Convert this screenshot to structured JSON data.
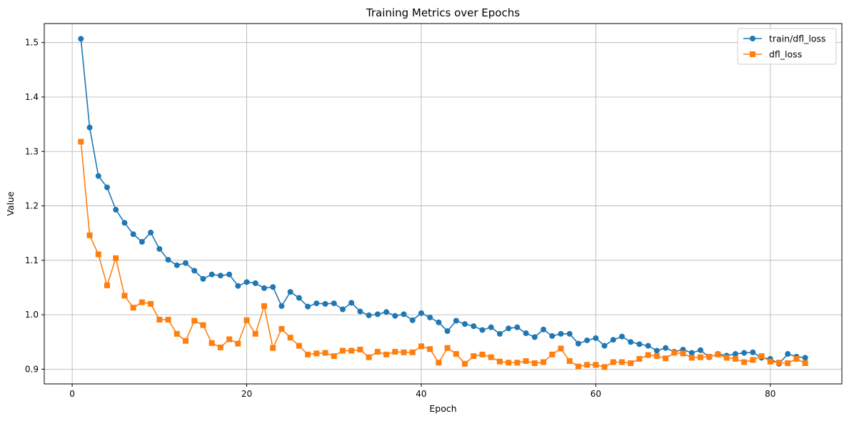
{
  "chart_data": {
    "type": "line",
    "title": "Training Metrics over Epochs",
    "xlabel": "Epoch",
    "ylabel": "Value",
    "xlim": [
      -3.2,
      88.2
    ],
    "ylim": [
      0.873,
      1.535
    ],
    "xticks": [
      0,
      20,
      40,
      60,
      80
    ],
    "yticks": [
      0.9,
      1.0,
      1.1,
      1.2,
      1.3,
      1.4,
      1.5
    ],
    "ytick_labels": [
      "0.9",
      "1.0",
      "1.1",
      "1.2",
      "1.3",
      "1.4",
      "1.5"
    ],
    "grid": true,
    "legend_position": "top-right",
    "x": [
      1,
      2,
      3,
      4,
      5,
      6,
      7,
      8,
      9,
      10,
      11,
      12,
      13,
      14,
      15,
      16,
      17,
      18,
      19,
      20,
      21,
      22,
      23,
      24,
      25,
      26,
      27,
      28,
      29,
      30,
      31,
      32,
      33,
      34,
      35,
      36,
      37,
      38,
      39,
      40,
      41,
      42,
      43,
      44,
      45,
      46,
      47,
      48,
      49,
      50,
      51,
      52,
      53,
      54,
      55,
      56,
      57,
      58,
      59,
      60,
      61,
      62,
      63,
      64,
      65,
      66,
      67,
      68,
      69,
      70,
      71,
      72,
      73,
      74,
      75,
      76,
      77,
      78,
      79,
      80,
      81,
      82,
      83,
      84
    ],
    "series": [
      {
        "name": "train/dfl_loss",
        "color": "#1f77b4",
        "marker": "circle",
        "values": [
          1.507,
          1.344,
          1.255,
          1.234,
          1.193,
          1.169,
          1.148,
          1.134,
          1.151,
          1.121,
          1.101,
          1.091,
          1.095,
          1.081,
          1.066,
          1.074,
          1.072,
          1.074,
          1.053,
          1.06,
          1.058,
          1.049,
          1.051,
          1.016,
          1.042,
          1.031,
          1.015,
          1.021,
          1.02,
          1.021,
          1.01,
          1.022,
          1.006,
          0.999,
          1.001,
          1.005,
          0.998,
          1.001,
          0.99,
          1.003,
          0.995,
          0.986,
          0.97,
          0.989,
          0.983,
          0.979,
          0.972,
          0.977,
          0.965,
          0.975,
          0.977,
          0.966,
          0.959,
          0.973,
          0.961,
          0.965,
          0.965,
          0.947,
          0.953,
          0.957,
          0.943,
          0.954,
          0.96,
          0.95,
          0.946,
          0.943,
          0.934,
          0.939,
          0.932,
          0.936,
          0.93,
          0.935,
          0.922,
          0.928,
          0.925,
          0.928,
          0.93,
          0.931,
          0.921,
          0.919,
          0.91,
          0.928,
          0.923,
          0.921
        ]
      },
      {
        "name": "dfl_loss",
        "color": "#ff7f0e",
        "marker": "square",
        "values": [
          1.318,
          1.146,
          1.111,
          1.054,
          1.104,
          1.035,
          1.013,
          1.023,
          1.02,
          0.991,
          0.991,
          0.965,
          0.952,
          0.989,
          0.981,
          0.948,
          0.94,
          0.955,
          0.947,
          0.99,
          0.965,
          1.016,
          0.939,
          0.974,
          0.958,
          0.943,
          0.927,
          0.929,
          0.93,
          0.924,
          0.934,
          0.934,
          0.936,
          0.922,
          0.932,
          0.927,
          0.932,
          0.931,
          0.931,
          0.942,
          0.937,
          0.912,
          0.939,
          0.928,
          0.91,
          0.924,
          0.927,
          0.922,
          0.914,
          0.912,
          0.912,
          0.915,
          0.911,
          0.913,
          0.927,
          0.938,
          0.915,
          0.905,
          0.908,
          0.908,
          0.904,
          0.913,
          0.913,
          0.911,
          0.919,
          0.926,
          0.924,
          0.92,
          0.93,
          0.929,
          0.921,
          0.922,
          0.923,
          0.927,
          0.921,
          0.919,
          0.913,
          0.917,
          0.924,
          0.914,
          0.912,
          0.911,
          0.919,
          0.911
        ]
      }
    ]
  }
}
